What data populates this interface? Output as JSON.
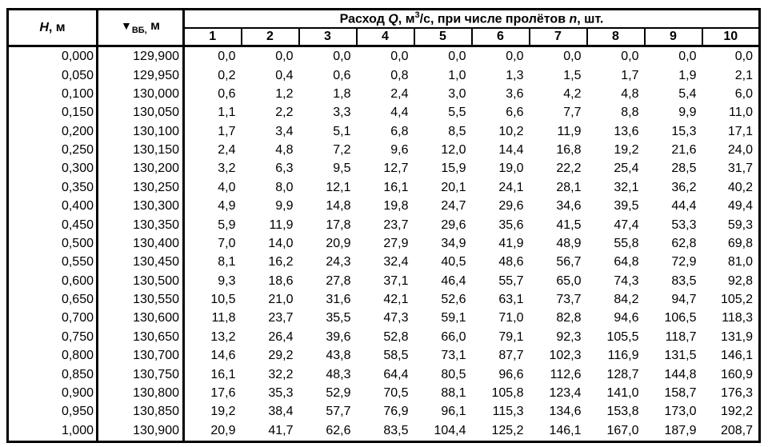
{
  "colors": {
    "border": "#000000",
    "text": "#000000",
    "background": "#ffffff"
  },
  "table": {
    "header": {
      "h_col": {
        "symbol": "H",
        "unit": ", м"
      },
      "vb_col": {
        "symbol": "▼",
        "sub": "ВБ,",
        "unit": " м"
      },
      "q_group": {
        "text_1": "Расход ",
        "q_symbol": "Q",
        "text_2": ", м",
        "sup": "3",
        "text_3": "/с, при числе пролётов ",
        "n_symbol": "n",
        "text_4": ", шт."
      },
      "span_columns": [
        "1",
        "2",
        "3",
        "4",
        "5",
        "6",
        "7",
        "8",
        "9",
        "10"
      ]
    },
    "rows": [
      {
        "h": "0,000",
        "vb": "129,900",
        "q": [
          "0,0",
          "0,0",
          "0,0",
          "0,0",
          "0,0",
          "0,0",
          "0,0",
          "0,0",
          "0,0",
          "0,0"
        ]
      },
      {
        "h": "0,050",
        "vb": "129,950",
        "q": [
          "0,2",
          "0,4",
          "0,6",
          "0,8",
          "1,0",
          "1,3",
          "1,5",
          "1,7",
          "1,9",
          "2,1"
        ]
      },
      {
        "h": "0,100",
        "vb": "130,000",
        "q": [
          "0,6",
          "1,2",
          "1,8",
          "2,4",
          "3,0",
          "3,6",
          "4,2",
          "4,8",
          "5,4",
          "6,0"
        ]
      },
      {
        "h": "0,150",
        "vb": "130,050",
        "q": [
          "1,1",
          "2,2",
          "3,3",
          "4,4",
          "5,5",
          "6,6",
          "7,7",
          "8,8",
          "9,9",
          "11,0"
        ]
      },
      {
        "h": "0,200",
        "vb": "130,100",
        "q": [
          "1,7",
          "3,4",
          "5,1",
          "6,8",
          "8,5",
          "10,2",
          "11,9",
          "13,6",
          "15,3",
          "17,1"
        ]
      },
      {
        "h": "0,250",
        "vb": "130,150",
        "q": [
          "2,4",
          "4,8",
          "7,2",
          "9,6",
          "12,0",
          "14,4",
          "16,8",
          "19,2",
          "21,6",
          "24,0"
        ]
      },
      {
        "h": "0,300",
        "vb": "130,200",
        "q": [
          "3,2",
          "6,3",
          "9,5",
          "12,7",
          "15,9",
          "19,0",
          "22,2",
          "25,4",
          "28,5",
          "31,7"
        ]
      },
      {
        "h": "0,350",
        "vb": "130,250",
        "q": [
          "4,0",
          "8,0",
          "12,1",
          "16,1",
          "20,1",
          "24,1",
          "28,1",
          "32,1",
          "36,2",
          "40,2"
        ]
      },
      {
        "h": "0,400",
        "vb": "130,300",
        "q": [
          "4,9",
          "9,9",
          "14,8",
          "19,8",
          "24,7",
          "29,6",
          "34,6",
          "39,5",
          "44,4",
          "49,4"
        ]
      },
      {
        "h": "0,450",
        "vb": "130,350",
        "q": [
          "5,9",
          "11,9",
          "17,8",
          "23,7",
          "29,6",
          "35,6",
          "41,5",
          "47,4",
          "53,3",
          "59,3"
        ]
      },
      {
        "h": "0,500",
        "vb": "130,400",
        "q": [
          "7,0",
          "14,0",
          "20,9",
          "27,9",
          "34,9",
          "41,9",
          "48,9",
          "55,8",
          "62,8",
          "69,8"
        ]
      },
      {
        "h": "0,550",
        "vb": "130,450",
        "q": [
          "8,1",
          "16,2",
          "24,3",
          "32,4",
          "40,5",
          "48,6",
          "56,7",
          "64,8",
          "72,9",
          "81,0"
        ]
      },
      {
        "h": "0,600",
        "vb": "130,500",
        "q": [
          "9,3",
          "18,6",
          "27,8",
          "37,1",
          "46,4",
          "55,7",
          "65,0",
          "74,3",
          "83,5",
          "92,8"
        ]
      },
      {
        "h": "0,650",
        "vb": "130,550",
        "q": [
          "10,5",
          "21,0",
          "31,6",
          "42,1",
          "52,6",
          "63,1",
          "73,7",
          "84,2",
          "94,7",
          "105,2"
        ]
      },
      {
        "h": "0,700",
        "vb": "130,600",
        "q": [
          "11,8",
          "23,7",
          "35,5",
          "47,3",
          "59,1",
          "71,0",
          "82,8",
          "94,6",
          "106,5",
          "118,3"
        ]
      },
      {
        "h": "0,750",
        "vb": "130,650",
        "q": [
          "13,2",
          "26,4",
          "39,6",
          "52,8",
          "66,0",
          "79,1",
          "92,3",
          "105,5",
          "118,7",
          "131,9"
        ]
      },
      {
        "h": "0,800",
        "vb": "130,700",
        "q": [
          "14,6",
          "29,2",
          "43,8",
          "58,5",
          "73,1",
          "87,7",
          "102,3",
          "116,9",
          "131,5",
          "146,1"
        ]
      },
      {
        "h": "0,850",
        "vb": "130,750",
        "q": [
          "16,1",
          "32,2",
          "48,3",
          "64,4",
          "80,5",
          "96,6",
          "112,6",
          "128,7",
          "144,8",
          "160,9"
        ]
      },
      {
        "h": "0,900",
        "vb": "130,800",
        "q": [
          "17,6",
          "35,3",
          "52,9",
          "70,5",
          "88,1",
          "105,8",
          "123,4",
          "141,0",
          "158,7",
          "176,3"
        ]
      },
      {
        "h": "0,950",
        "vb": "130,850",
        "q": [
          "19,2",
          "38,4",
          "57,7",
          "76,9",
          "96,1",
          "115,3",
          "134,6",
          "153,8",
          "173,0",
          "192,2"
        ]
      },
      {
        "h": "1,000",
        "vb": "130,900",
        "q": [
          "20,9",
          "41,7",
          "62,6",
          "83,5",
          "104,4",
          "125,2",
          "146,1",
          "167,0",
          "187,9",
          "208,7"
        ]
      }
    ]
  }
}
